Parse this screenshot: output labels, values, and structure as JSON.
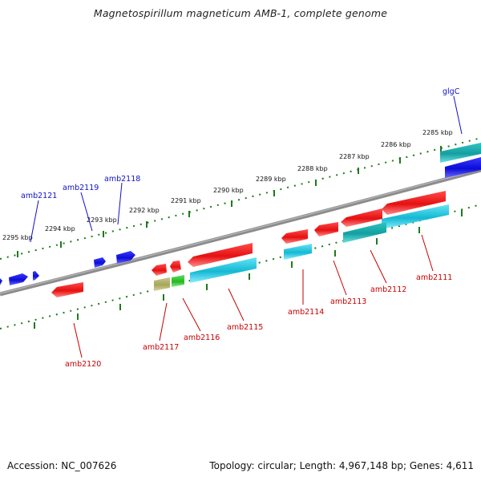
{
  "title": "Magnetospirillum magneticum AMB-1, complete genome",
  "footer": {
    "accession": "Accession: NC_007626",
    "summary": "Topology: circular; Length: 4,967,148 bp; Genes: 4,611"
  },
  "colors": {
    "forward_label": "#1010c8",
    "reverse_label": "#c80000",
    "backbone": "#8c8c8c",
    "ticks": "#1e7a1e",
    "red_gene": "#ee1111",
    "blue_gene": "#1010ee",
    "cyan_gene": "#22c6d8",
    "teal_gene": "#19b3b3",
    "olive_gene": "#b4b464",
    "green_gene": "#33cc33"
  },
  "scale": {
    "ticks": [
      "2285 kbp",
      "2286 kbp",
      "2287 kbp",
      "2288 kbp",
      "2289 kbp",
      "2290 kbp",
      "2291 kbp",
      "2292 kbp",
      "2293 kbp",
      "2294 kbp",
      "2295 kbp"
    ]
  },
  "genes": {
    "forward_labels": [
      "glgC",
      "amb2118",
      "amb2119",
      "amb2121"
    ],
    "reverse_labels": [
      "amb2111",
      "amb2112",
      "amb2113",
      "amb2114",
      "amb2115",
      "amb2116",
      "amb2117",
      "amb2120"
    ]
  }
}
